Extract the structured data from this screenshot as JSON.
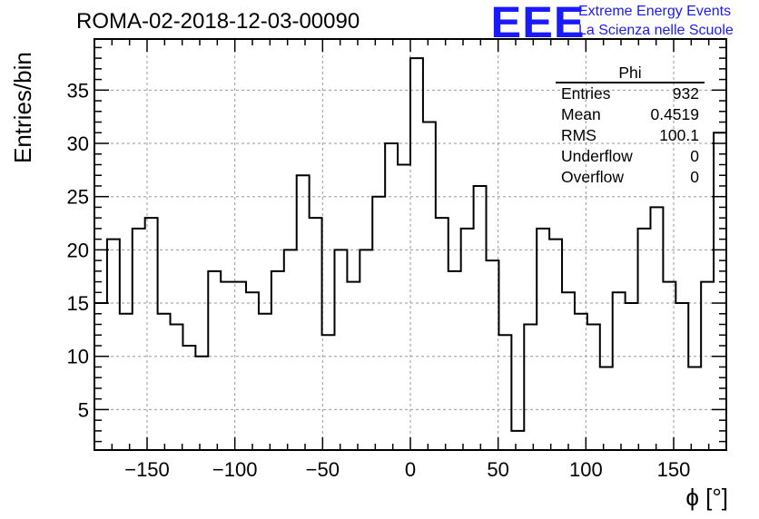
{
  "header": {
    "run_title": "ROMA-02-2018-12-03-00090",
    "logo_text": "EEE",
    "logo_line1": "Extreme Energy Events",
    "logo_line2": "La Scienza nelle Scuole"
  },
  "stats_box": {
    "name": "Phi",
    "rows": [
      {
        "label": "Entries",
        "value": "932"
      },
      {
        "label": "Mean",
        "value": "0.4519"
      },
      {
        "label": "RMS",
        "value": "100.1"
      },
      {
        "label": "Underflow",
        "value": "0"
      },
      {
        "label": "Overflow",
        "value": "0"
      }
    ]
  },
  "colors": {
    "line": "#000000",
    "logo": "#1a1aff",
    "grid": "#999999"
  },
  "chart_data": {
    "type": "histogram",
    "title": "ROMA-02-2018-12-03-00090",
    "xlabel": "ϕ [°]",
    "ylabel": "Entries/bin",
    "xlim": [
      -180,
      180
    ],
    "ylim": [
      1.2,
      39.8
    ],
    "bin_width": 8.57,
    "bin_start": -180,
    "values": [
      15,
      21,
      14,
      22,
      23,
      14,
      13,
      11,
      10,
      18,
      17,
      17,
      16,
      14,
      18,
      20,
      27,
      23,
      12,
      20,
      17,
      20,
      25,
      30,
      28,
      38,
      32,
      23,
      18,
      22,
      26,
      19,
      12,
      3,
      13,
      22,
      21,
      16,
      14,
      13,
      9,
      16,
      15,
      22,
      24,
      17,
      15,
      9,
      17,
      31
    ],
    "x_ticks": [
      -150,
      -100,
      -50,
      0,
      50,
      100,
      150
    ],
    "x_tick_labels": [
      "−150",
      "−100",
      "−50",
      "0",
      "50",
      "100",
      "150"
    ],
    "y_ticks": [
      5,
      10,
      15,
      20,
      25,
      30,
      35
    ],
    "y_tick_labels": [
      "5",
      "10",
      "15",
      "20",
      "25",
      "30",
      "35"
    ],
    "grid": true
  }
}
